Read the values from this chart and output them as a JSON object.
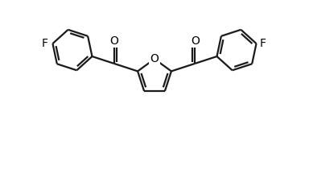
{
  "background_color": "#ffffff",
  "line_color": "#1a1a1a",
  "line_width": 1.6,
  "text_color": "#000000",
  "font_size": 10,
  "figsize": [
    3.84,
    2.16
  ],
  "dpi": 100,
  "xlim": [
    0,
    10
  ],
  "ylim": [
    0,
    5.625
  ]
}
